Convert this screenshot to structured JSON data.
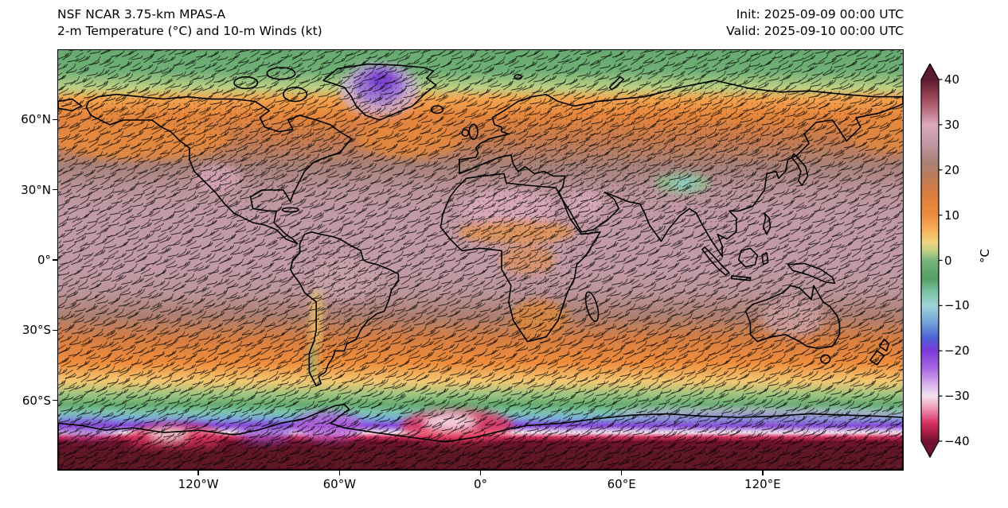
{
  "header": {
    "title_line1": "NSF NCAR 3.75-km MPAS-A",
    "title_line2": "2-m Temperature (°C) and 10-m Winds (kt)",
    "init_line": "Init: 2025-09-09 00:00 UTC",
    "valid_line": "Valid: 2025-09-10 00:00 UTC"
  },
  "chart_data": {
    "type": "heatmap",
    "title": "2-m Temperature (°C) and 10-m Winds (kt)",
    "model": "NSF NCAR 3.75-km MPAS-A",
    "init": "2025-09-09 00:00 UTC",
    "valid": "2025-09-10 00:00 UTC",
    "projection": "global equirectangular, lon 180°W–180°E, lat 90°N–90°S",
    "wind_layer": "10-m wind barbs (kt) plotted densely in black over the whole globe",
    "x_ticks": [
      {
        "label": "120°W",
        "lon": -120
      },
      {
        "label": "60°W",
        "lon": -60
      },
      {
        "label": "0°",
        "lon": 0
      },
      {
        "label": "60°E",
        "lon": 60
      },
      {
        "label": "120°E",
        "lon": 120
      }
    ],
    "y_ticks": [
      {
        "label": "60°N",
        "lat": 60
      },
      {
        "label": "30°N",
        "lat": 30
      },
      {
        "label": "0°",
        "lat": 0
      },
      {
        "label": "30°S",
        "lat": -30
      },
      {
        "label": "60°S",
        "lat": -60
      }
    ],
    "colorbar": {
      "label": "°C",
      "min": -40,
      "max": 40,
      "extend": "both",
      "ticks": [
        {
          "label": "40",
          "value": 40
        },
        {
          "label": "30",
          "value": 30
        },
        {
          "label": "20",
          "value": 20
        },
        {
          "label": "10",
          "value": 10
        },
        {
          "label": "0",
          "value": 0
        },
        {
          "label": "−10",
          "value": -10
        },
        {
          "label": "−20",
          "value": -20
        },
        {
          "label": "−30",
          "value": -30
        },
        {
          "label": "−40",
          "value": -40
        }
      ],
      "palette_stops": [
        {
          "t": -40,
          "color": "#701230"
        },
        {
          "t": -38,
          "color": "#a91d46"
        },
        {
          "t": -36,
          "color": "#d63060"
        },
        {
          "t": -33,
          "color": "#ef8fb0"
        },
        {
          "t": -30,
          "color": "#f3e4ee"
        },
        {
          "t": -27,
          "color": "#d4a9ec"
        },
        {
          "t": -24,
          "color": "#a868e2"
        },
        {
          "t": -20,
          "color": "#7b3bd9"
        },
        {
          "t": -17,
          "color": "#4f63d2"
        },
        {
          "t": -14,
          "color": "#6f9fd9"
        },
        {
          "t": -10,
          "color": "#9fd4d8"
        },
        {
          "t": -7,
          "color": "#7cc4a8"
        },
        {
          "t": -4,
          "color": "#539e62"
        },
        {
          "t": 0,
          "color": "#7ab57e"
        },
        {
          "t": 2,
          "color": "#bcd084"
        },
        {
          "t": 4,
          "color": "#f2d480"
        },
        {
          "t": 7,
          "color": "#f5ae57"
        },
        {
          "t": 10,
          "color": "#ee8c3c"
        },
        {
          "t": 14,
          "color": "#dd7f3e"
        },
        {
          "t": 18,
          "color": "#bf7a53"
        },
        {
          "t": 22,
          "color": "#a8827b"
        },
        {
          "t": 26,
          "color": "#c29aa6"
        },
        {
          "t": 30,
          "color": "#dcaabc"
        },
        {
          "t": 34,
          "color": "#b56275"
        },
        {
          "t": 37,
          "color": "#8c3a49"
        },
        {
          "t": 40,
          "color": "#5c1a2e"
        }
      ]
    },
    "zonal_mean_temperature_c": [
      {
        "lat": 90,
        "t": -2
      },
      {
        "lat": 81,
        "t": -1
      },
      {
        "lat": 74,
        "t": 2
      },
      {
        "lat": 69,
        "t": 8
      },
      {
        "lat": 62,
        "t": 12
      },
      {
        "lat": 52,
        "t": 17
      },
      {
        "lat": 40,
        "t": 22
      },
      {
        "lat": 30,
        "t": 25
      },
      {
        "lat": 20,
        "t": 26
      },
      {
        "lat": 8,
        "t": 26
      },
      {
        "lat": -4,
        "t": 26
      },
      {
        "lat": -14,
        "t": 25
      },
      {
        "lat": -24,
        "t": 21
      },
      {
        "lat": -34,
        "t": 15
      },
      {
        "lat": -44,
        "t": 10
      },
      {
        "lat": -52,
        "t": 5
      },
      {
        "lat": -58,
        "t": 1
      },
      {
        "lat": -62,
        "t": -2
      },
      {
        "lat": -65,
        "t": -7
      },
      {
        "lat": -68,
        "t": -13
      },
      {
        "lat": -71,
        "t": -21
      },
      {
        "lat": -74,
        "t": -30
      },
      {
        "lat": -76,
        "t": -36
      },
      {
        "lat": -78,
        "t": -40
      },
      {
        "lat": -90,
        "t": -42
      }
    ],
    "notable_features": [
      "Greenland ice sheet cold anomaly (violet, −15 to −25 °C)",
      "Sahara and Arabian Peninsula near 30 °C (pink)",
      "Southwest North America near 30 °C (pink)",
      "Tibetan Plateau cool patch (green/teal)",
      "Orange 10–20 °C storm-track bands over N Pacific, N Atlantic and Southern Ocean",
      "Green 0 °C ring near 60°S and Arctic cap",
      "Antarctic coastal ring −20 to −35 °C (violet/magenta/red/white)",
      "Antarctic interior at or below −40 °C (dark maroon)"
    ]
  }
}
